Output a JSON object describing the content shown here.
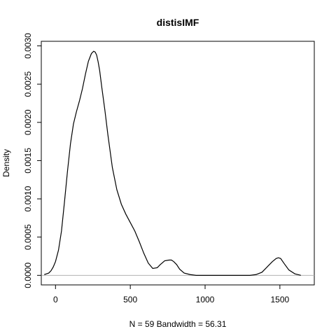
{
  "chart_data": {
    "type": "line",
    "title": "distisIMF",
    "xlabel": "N = 59   Bandwidth = 56.31",
    "ylabel": "Density",
    "xlim": [
      -95,
      1730
    ],
    "ylim": [
      -0.000125,
      0.00306
    ],
    "x_ticks": [
      0,
      500,
      1000,
      1500
    ],
    "x_tick_labels": [
      "0",
      "500",
      "1000",
      "1500"
    ],
    "y_ticks": [
      0,
      0.0005,
      0.001,
      0.0015,
      0.002,
      0.0025,
      0.003
    ],
    "y_tick_labels": [
      "0.0000",
      "0.0005",
      "0.0010",
      "0.0015",
      "0.0020",
      "0.0025",
      "0.0030"
    ],
    "zero_line": true,
    "series": [
      {
        "x": [
          -75,
          -60,
          -45,
          -30,
          -15,
          0,
          20,
          40,
          60,
          80,
          100,
          120,
          140,
          160,
          180,
          200,
          220,
          240,
          255,
          265,
          275,
          285,
          295,
          310,
          330,
          350,
          380,
          410,
          440,
          470,
          500,
          530,
          560,
          590,
          620,
          650,
          680,
          700,
          730,
          760,
          775,
          790,
          810,
          830,
          860,
          900,
          940,
          1300,
          1340,
          1380,
          1420,
          1450,
          1475,
          1490,
          1505,
          1530,
          1560,
          1600,
          1640
        ],
        "y": [
          1e-05,
          2e-05,
          3e-05,
          6e-05,
          0.00011,
          0.00018,
          0.00033,
          0.00058,
          0.00096,
          0.00136,
          0.00172,
          0.00198,
          0.00214,
          0.00228,
          0.00244,
          0.00263,
          0.0028,
          0.0029,
          0.00293,
          0.00292,
          0.00288,
          0.00279,
          0.00268,
          0.00245,
          0.00216,
          0.00184,
          0.00141,
          0.00112,
          0.00093,
          0.0008,
          0.00069,
          0.00058,
          0.00044,
          0.00029,
          0.00016,
          9e-05,
          0.0001,
          0.00014,
          0.00019,
          0.0002,
          0.0002,
          0.00018,
          0.00014,
          8e-05,
          3e-05,
          1e-05,
          0.0,
          0.0,
          1e-05,
          4e-05,
          0.00012,
          0.00018,
          0.00022,
          0.00023,
          0.00022,
          0.00015,
          7e-05,
          2e-05,
          0.0
        ]
      }
    ]
  }
}
